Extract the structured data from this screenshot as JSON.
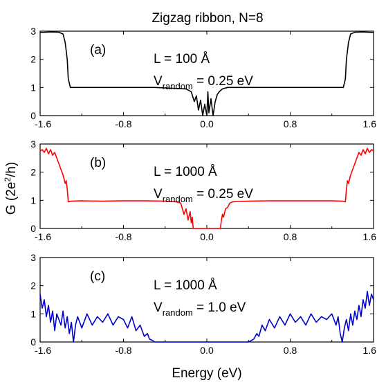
{
  "figure": {
    "title": "Zigzag ribbon, N=8",
    "xlabel": "Energy (eV)",
    "ylabel": "G (2e",
    "ylabel_sup": "2",
    "ylabel_tail": "/h)"
  },
  "chart_data": [
    {
      "type": "line",
      "panel_label": "(a)",
      "annotation_L": "L = 100 Å",
      "annotation_V_main": "V",
      "annotation_V_sub": "random",
      "annotation_V_value": " = 0.25 eV",
      "color": "#000000",
      "xlim": [
        -1.6,
        1.6
      ],
      "ylim": [
        0,
        3
      ],
      "x_ticks": [
        "-1.6",
        "-0.8",
        "0.0",
        "0.8",
        "1.6"
      ],
      "y_ticks": [
        "0",
        "1",
        "2",
        "3"
      ],
      "x": [
        -1.6,
        -1.5,
        -1.42,
        -1.38,
        -1.36,
        -1.34,
        -1.33,
        -1.31,
        -0.5,
        -0.2,
        -0.15,
        -0.12,
        -0.1,
        -0.08,
        -0.06,
        -0.04,
        -0.02,
        0.0,
        0.01,
        0.02,
        0.04,
        0.06,
        0.08,
        0.1,
        0.12,
        0.15,
        0.2,
        0.5,
        1.31,
        1.33,
        1.34,
        1.36,
        1.38,
        1.42,
        1.5,
        1.6
      ],
      "y": [
        2.95,
        2.97,
        2.96,
        2.9,
        2.6,
        2.0,
        1.3,
        1.0,
        1.0,
        0.95,
        0.85,
        0.5,
        0.7,
        0.2,
        0.55,
        0.0,
        0.4,
        0.0,
        0.85,
        0.1,
        0.6,
        0.0,
        0.5,
        0.75,
        0.85,
        0.95,
        1.0,
        1.0,
        1.0,
        1.3,
        2.0,
        2.6,
        2.9,
        2.96,
        2.97,
        2.95
      ]
    },
    {
      "type": "line",
      "panel_label": "(b)",
      "annotation_L": "L = 1000 Å",
      "annotation_V_main": "V",
      "annotation_V_sub": "random",
      "annotation_V_value": " = 0.25 eV",
      "color": "#ff0000",
      "xlim": [
        -1.6,
        1.6
      ],
      "ylim": [
        0,
        3
      ],
      "x_ticks": [
        "-1.6",
        "-0.8",
        "0.0",
        "0.8",
        "1.6"
      ],
      "y_ticks": [
        "0",
        "1",
        "2",
        "3"
      ],
      "x": [
        -1.6,
        -1.58,
        -1.56,
        -1.54,
        -1.52,
        -1.5,
        -1.48,
        -1.46,
        -1.44,
        -1.42,
        -1.4,
        -1.38,
        -1.36,
        -1.35,
        -1.34,
        -1.33,
        -1.3,
        -1.2,
        -1.0,
        -0.8,
        -0.6,
        -0.4,
        -0.3,
        -0.25,
        -0.22,
        -0.2,
        -0.18,
        -0.16,
        -0.15,
        -0.14,
        -0.13,
        0.13,
        0.14,
        0.15,
        0.16,
        0.18,
        0.2,
        0.22,
        0.25,
        0.3,
        0.4,
        0.6,
        0.8,
        1.0,
        1.2,
        1.3,
        1.33,
        1.34,
        1.35,
        1.36,
        1.38,
        1.4,
        1.42,
        1.44,
        1.46,
        1.48,
        1.5,
        1.52,
        1.54,
        1.56,
        1.58,
        1.6
      ],
      "y": [
        2.75,
        2.8,
        2.7,
        2.85,
        2.65,
        2.8,
        2.6,
        2.7,
        2.5,
        2.3,
        2.1,
        1.9,
        1.6,
        1.7,
        1.4,
        0.95,
        0.97,
        0.98,
        0.97,
        0.98,
        0.98,
        0.97,
        0.95,
        0.9,
        0.5,
        0.7,
        0.3,
        0.6,
        0.2,
        0.4,
        0.0,
        0.0,
        0.3,
        0.5,
        0.4,
        0.7,
        0.75,
        0.9,
        0.95,
        0.96,
        0.97,
        0.98,
        0.98,
        0.98,
        0.98,
        0.97,
        0.95,
        1.4,
        1.7,
        1.6,
        1.9,
        2.1,
        2.3,
        2.5,
        2.7,
        2.6,
        2.8,
        2.65,
        2.85,
        2.7,
        2.8,
        2.75
      ]
    },
    {
      "type": "line",
      "panel_label": "(c)",
      "annotation_L": "L = 1000 Å",
      "annotation_V_main": "V",
      "annotation_V_sub": "random",
      "annotation_V_value": " = 1.0 eV",
      "color": "#0000cc",
      "xlim": [
        -1.6,
        1.6
      ],
      "ylim": [
        0,
        3
      ],
      "x_ticks": [
        "-1.6",
        "-0.8",
        "0.0",
        "0.8",
        "1.6"
      ],
      "y_ticks": [
        "0",
        "1",
        "2",
        "3"
      ],
      "x": [
        -1.6,
        -1.58,
        -1.56,
        -1.54,
        -1.52,
        -1.5,
        -1.48,
        -1.46,
        -1.44,
        -1.42,
        -1.4,
        -1.38,
        -1.36,
        -1.34,
        -1.32,
        -1.3,
        -1.28,
        -1.26,
        -1.24,
        -1.2,
        -1.15,
        -1.1,
        -1.05,
        -1.0,
        -0.95,
        -0.9,
        -0.85,
        -0.8,
        -0.76,
        -0.72,
        -0.68,
        -0.64,
        -0.6,
        -0.57,
        -0.55,
        -0.52,
        -0.5,
        0.4,
        0.45,
        0.48,
        0.5,
        0.53,
        0.56,
        0.6,
        0.65,
        0.7,
        0.75,
        0.8,
        0.85,
        0.9,
        0.95,
        1.0,
        1.05,
        1.1,
        1.15,
        1.2,
        1.24,
        1.26,
        1.28,
        1.3,
        1.32,
        1.34,
        1.36,
        1.38,
        1.4,
        1.42,
        1.44,
        1.46,
        1.48,
        1.5,
        1.52,
        1.54,
        1.56,
        1.58,
        1.6
      ],
      "y": [
        1.7,
        1.2,
        1.5,
        0.9,
        1.3,
        0.7,
        1.1,
        0.4,
        1.0,
        0.8,
        0.6,
        1.1,
        0.5,
        0.9,
        0.3,
        0.7,
        0.0,
        0.6,
        0.9,
        0.5,
        1.0,
        0.6,
        0.9,
        0.7,
        1.0,
        0.6,
        0.9,
        0.8,
        0.5,
        0.9,
        0.4,
        0.6,
        0.2,
        0.3,
        0.1,
        0.05,
        0.0,
        0.0,
        0.1,
        0.3,
        0.2,
        0.6,
        0.4,
        0.8,
        0.5,
        0.9,
        0.6,
        1.0,
        0.7,
        0.9,
        0.6,
        1.0,
        0.7,
        0.9,
        0.8,
        1.0,
        0.6,
        0.9,
        0.3,
        0.0,
        0.5,
        0.8,
        0.4,
        1.0,
        0.6,
        1.1,
        0.8,
        1.3,
        0.9,
        1.5,
        1.2,
        1.8,
        1.3,
        1.7,
        1.5
      ]
    }
  ]
}
